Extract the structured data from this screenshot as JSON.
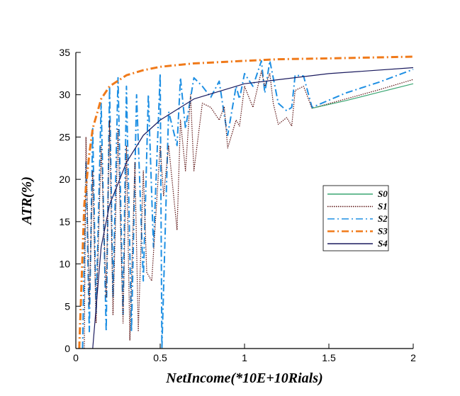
{
  "chart_data": {
    "type": "line",
    "title": "",
    "xlabel": "NetIncome(*10E+10Rials)",
    "ylabel": "ATR(%)",
    "xlim": [
      0,
      2
    ],
    "ylim": [
      0,
      35
    ],
    "x_ticks": [
      0,
      0.5,
      1,
      1.5,
      2
    ],
    "x_tick_labels": [
      "0",
      "0.5",
      "1",
      "1.5",
      "2"
    ],
    "y_ticks": [
      0,
      5,
      10,
      15,
      20,
      25,
      30,
      35
    ],
    "y_tick_labels": [
      "0",
      "5",
      "10",
      "15",
      "20",
      "25",
      "30",
      "35"
    ],
    "grid": false,
    "legend_position": "right-middle",
    "series": [
      {
        "name": "S0",
        "color": "#3aa672",
        "style": "solid",
        "points": [
          [
            1.4,
            28.4
          ],
          [
            1.6,
            29.3
          ],
          [
            1.8,
            30.3
          ],
          [
            2.0,
            31.3
          ]
        ]
      },
      {
        "name": "S1",
        "color": "#5a1010",
        "style": "dotted",
        "points": [
          [
            0.05,
            0
          ],
          [
            0.06,
            25
          ],
          [
            0.08,
            5
          ],
          [
            0.1,
            21
          ],
          [
            0.12,
            3
          ],
          [
            0.15,
            24
          ],
          [
            0.18,
            6
          ],
          [
            0.2,
            27
          ],
          [
            0.22,
            4
          ],
          [
            0.25,
            26
          ],
          [
            0.28,
            3
          ],
          [
            0.3,
            24
          ],
          [
            0.32,
            1
          ],
          [
            0.35,
            22
          ],
          [
            0.37,
            2
          ],
          [
            0.4,
            21
          ],
          [
            0.42,
            9
          ],
          [
            0.45,
            8
          ],
          [
            0.5,
            24
          ],
          [
            0.52,
            18
          ],
          [
            0.55,
            24
          ],
          [
            0.6,
            14
          ],
          [
            0.62,
            27
          ],
          [
            0.65,
            21
          ],
          [
            0.68,
            30
          ],
          [
            0.7,
            21
          ],
          [
            0.75,
            29
          ],
          [
            0.8,
            28.5
          ],
          [
            0.85,
            27
          ],
          [
            0.88,
            28.6
          ],
          [
            0.9,
            23.7
          ],
          [
            0.95,
            27
          ],
          [
            0.97,
            26.3
          ],
          [
            1.0,
            31
          ],
          [
            1.05,
            28.5
          ],
          [
            1.1,
            32.8
          ],
          [
            1.12,
            31
          ],
          [
            1.15,
            32.5
          ],
          [
            1.17,
            29
          ],
          [
            1.2,
            26.5
          ],
          [
            1.25,
            27.3
          ],
          [
            1.28,
            26.3
          ],
          [
            1.3,
            30.5
          ],
          [
            1.35,
            31
          ],
          [
            1.4,
            28.4
          ],
          [
            1.6,
            29.5
          ],
          [
            1.8,
            30.6
          ],
          [
            2.0,
            31.8
          ]
        ]
      },
      {
        "name": "S2",
        "color": "#1e8fe3",
        "style": "dash-dot",
        "points": [
          [
            0.04,
            0
          ],
          [
            0.06,
            22
          ],
          [
            0.08,
            2
          ],
          [
            0.1,
            26
          ],
          [
            0.12,
            4
          ],
          [
            0.15,
            29
          ],
          [
            0.18,
            2
          ],
          [
            0.2,
            31
          ],
          [
            0.22,
            6
          ],
          [
            0.25,
            32
          ],
          [
            0.28,
            4
          ],
          [
            0.3,
            31
          ],
          [
            0.33,
            2
          ],
          [
            0.36,
            30
          ],
          [
            0.4,
            8
          ],
          [
            0.43,
            30
          ],
          [
            0.46,
            12
          ],
          [
            0.5,
            32.5
          ],
          [
            0.51,
            0
          ],
          [
            0.55,
            28
          ],
          [
            0.6,
            24
          ],
          [
            0.62,
            32
          ],
          [
            0.65,
            26
          ],
          [
            0.7,
            32
          ],
          [
            0.75,
            31
          ],
          [
            0.8,
            29.7
          ],
          [
            0.85,
            31.6
          ],
          [
            0.88,
            27.6
          ],
          [
            0.9,
            25.2
          ],
          [
            0.95,
            31
          ],
          [
            0.97,
            29.5
          ],
          [
            1.0,
            32.5
          ],
          [
            1.05,
            31
          ],
          [
            1.1,
            34
          ],
          [
            1.12,
            30.2
          ],
          [
            1.15,
            34
          ],
          [
            1.17,
            32
          ],
          [
            1.2,
            29
          ],
          [
            1.25,
            28.1
          ],
          [
            1.28,
            28.5
          ],
          [
            1.3,
            32.3
          ],
          [
            1.35,
            32.2
          ],
          [
            1.4,
            28.5
          ],
          [
            1.6,
            30.2
          ],
          [
            1.8,
            31.5
          ],
          [
            2.0,
            33
          ]
        ]
      },
      {
        "name": "S3",
        "color": "#f07a1a",
        "style": "dash-dot",
        "points": [
          [
            0.02,
            0
          ],
          [
            0.05,
            17
          ],
          [
            0.08,
            23
          ],
          [
            0.1,
            26
          ],
          [
            0.15,
            29.5
          ],
          [
            0.2,
            31
          ],
          [
            0.3,
            32.3
          ],
          [
            0.4,
            32.9
          ],
          [
            0.5,
            33.3
          ],
          [
            0.7,
            33.7
          ],
          [
            1.0,
            34
          ],
          [
            1.2,
            34.2
          ],
          [
            1.5,
            34.3
          ],
          [
            2.0,
            34.5
          ]
        ]
      },
      {
        "name": "S4",
        "color": "#1a1a5e",
        "style": "solid",
        "points": [
          [
            0.1,
            0
          ],
          [
            0.15,
            12
          ],
          [
            0.2,
            17
          ],
          [
            0.3,
            22
          ],
          [
            0.4,
            25.2
          ],
          [
            0.5,
            27
          ],
          [
            0.7,
            29.5
          ],
          [
            1.0,
            31.3
          ],
          [
            1.5,
            32.5
          ],
          [
            2.0,
            33.2
          ]
        ]
      }
    ]
  }
}
